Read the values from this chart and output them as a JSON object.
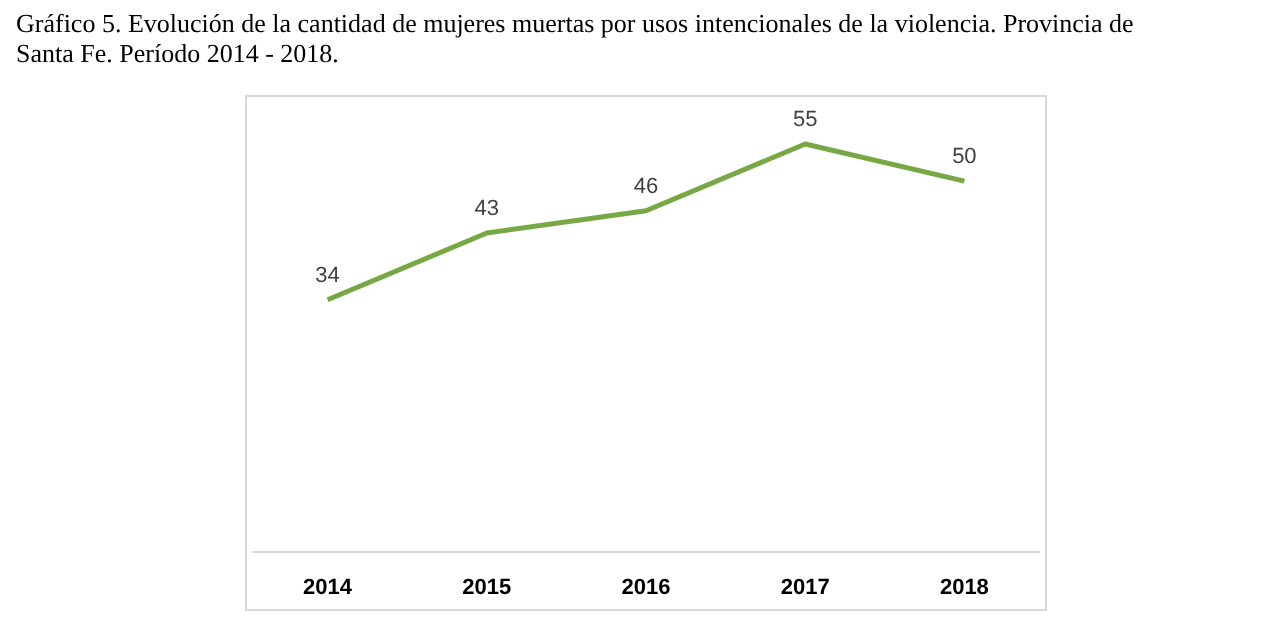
{
  "chart_data": {
    "type": "line",
    "title": "Gráfico 5. Evolución de la cantidad de mujeres muertas por usos intencionales de la violencia. Provincia de Santa Fe. Período 2014 - 2018.",
    "categories": [
      "2014",
      "2015",
      "2016",
      "2017",
      "2018"
    ],
    "series": [
      {
        "color": "#77a843",
        "values": [
          34,
          43,
          46,
          55,
          50
        ]
      }
    ],
    "data_labels": true,
    "tick_labels": "x",
    "marker": "none",
    "line_style": "solid"
  }
}
